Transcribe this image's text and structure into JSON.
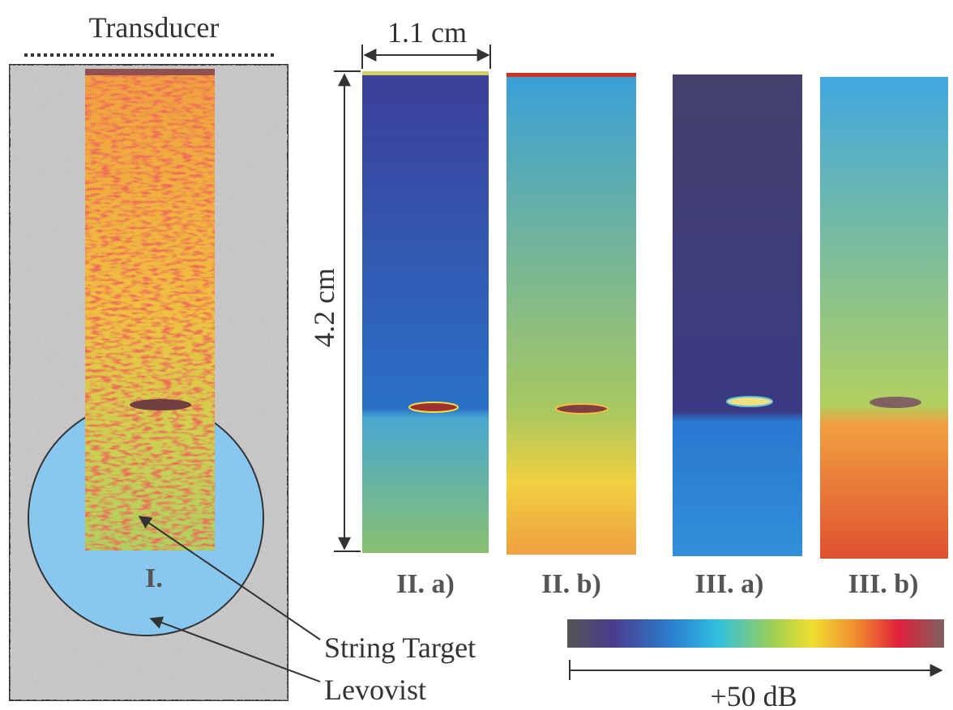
{
  "figure": {
    "transducer": "Transducer",
    "width_label": "1.1 cm",
    "depth_label": "4.2 cm",
    "region_label": "I.",
    "panels": [
      "II. a)",
      "II. b)",
      "III. a)",
      "III. b)"
    ],
    "annotations": [
      "String Target",
      "Levovist"
    ],
    "colorbar_label": "+50 dB"
  }
}
